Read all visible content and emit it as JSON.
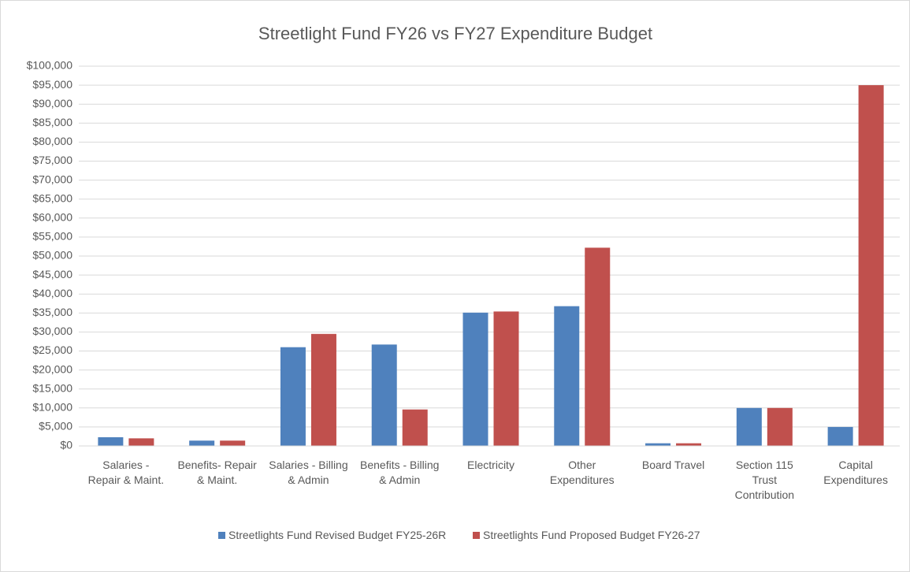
{
  "chart_data": {
    "type": "bar",
    "title": "Streetlight Fund FY26 vs FY27 Expenditure Budget",
    "categories": [
      "Salaries - Repair & Maint.",
      "Benefits- Repair & Maint.",
      "Salaries - Billing & Admin",
      "Benefits - Billing & Admin",
      "Electricity",
      "Other Expenditures",
      "Board Travel",
      "Section 115 Trust Contribution",
      "Capital Expenditures"
    ],
    "series": [
      {
        "name": "Streetlights Fund Revised Budget FY25-26R",
        "color": "#4f81bd",
        "values": [
          2300,
          1400,
          26000,
          26700,
          35100,
          36800,
          700,
          10000,
          5000
        ]
      },
      {
        "name": "Streetlights Fund Proposed Budget FY26-27",
        "color": "#c0504d",
        "values": [
          2000,
          1400,
          29500,
          9600,
          35400,
          52200,
          700,
          10000,
          95000
        ]
      }
    ],
    "ylim": [
      0,
      100000
    ],
    "yticks": [
      {
        "value": 0,
        "label": "$0"
      },
      {
        "value": 5000,
        "label": "$5,000"
      },
      {
        "value": 10000,
        "label": "$10,000"
      },
      {
        "value": 15000,
        "label": "$15,000"
      },
      {
        "value": 20000,
        "label": "$20,000"
      },
      {
        "value": 25000,
        "label": "$25,000"
      },
      {
        "value": 30000,
        "label": "$30,000"
      },
      {
        "value": 35000,
        "label": "$35,000"
      },
      {
        "value": 40000,
        "label": "$40,000"
      },
      {
        "value": 45000,
        "label": "$45,000"
      },
      {
        "value": 50000,
        "label": "$50,000"
      },
      {
        "value": 55000,
        "label": "$55,000"
      },
      {
        "value": 60000,
        "label": "$60,000"
      },
      {
        "value": 65000,
        "label": "$65,000"
      },
      {
        "value": 70000,
        "label": "$70,000"
      },
      {
        "value": 75000,
        "label": "$75,000"
      },
      {
        "value": 80000,
        "label": "$80,000"
      },
      {
        "value": 85000,
        "label": "$85,000"
      },
      {
        "value": 90000,
        "label": "$90,000"
      },
      {
        "value": 95000,
        "label": "$95,000"
      },
      {
        "value": 100000,
        "label": "$100,000"
      }
    ],
    "grid": true,
    "legend": "bottom"
  }
}
